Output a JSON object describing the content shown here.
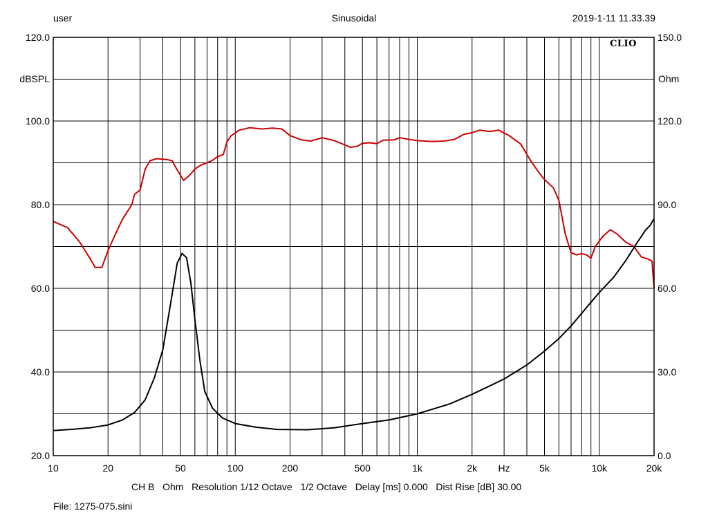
{
  "header": {
    "user": "user",
    "mode": "Sinusoidal",
    "datetime": "2019-1-11 11.33.39",
    "logo": "CLIO"
  },
  "footer": {
    "settings": "CH B   Ohm   Resolution 1/12 Octave   1/2 Octave   Delay [ms] 0.000   Dist Rise [dB] 30.00",
    "file": "File: 1275-075.sini"
  },
  "chart_data": {
    "type": "line",
    "x_scale": "log",
    "xlim": [
      10,
      20000
    ],
    "x_tick_values": [
      10,
      20,
      50,
      100,
      200,
      500,
      1000,
      2000,
      5000,
      10000,
      20000
    ],
    "x_tick_labels": [
      "10",
      "20",
      "50",
      "100",
      "200",
      "500",
      "1k",
      "2k",
      "5k",
      "10k",
      "20k"
    ],
    "x_unit_label": "Hz",
    "y_left": {
      "label": "dBSPL",
      "lim": [
        20,
        120
      ],
      "tick_values": [
        20,
        40,
        60,
        80,
        100,
        120
      ],
      "tick_labels": [
        "20.0",
        "40.0",
        "60.0",
        "80.0",
        "100.0",
        "120.0"
      ]
    },
    "y_right": {
      "label": "Ohm",
      "lim": [
        0,
        150
      ],
      "tick_values": [
        0,
        30,
        60,
        90,
        120,
        150
      ],
      "tick_labels": [
        "0.0",
        "30.0",
        "60.0",
        "90.0",
        "120.0",
        "150.0"
      ]
    },
    "grid": true,
    "series": [
      {
        "axis": "left",
        "color": "#cc0000",
        "points": [
          [
            10,
            76
          ],
          [
            12,
            74.5
          ],
          [
            14,
            71
          ],
          [
            16,
            67
          ],
          [
            17,
            65
          ],
          [
            18.5,
            65
          ],
          [
            20,
            69
          ],
          [
            22,
            73
          ],
          [
            24,
            76.5
          ],
          [
            27,
            80
          ],
          [
            28,
            82.5
          ],
          [
            30,
            83.5
          ],
          [
            32,
            88.5
          ],
          [
            34,
            90.5
          ],
          [
            37,
            91
          ],
          [
            42,
            90.8
          ],
          [
            45,
            90.5
          ],
          [
            47,
            89
          ],
          [
            52,
            85.8
          ],
          [
            56,
            87
          ],
          [
            60,
            88.5
          ],
          [
            65,
            89.5
          ],
          [
            70,
            90
          ],
          [
            75,
            90.6
          ],
          [
            80,
            91.5
          ],
          [
            86,
            92
          ],
          [
            90,
            95
          ],
          [
            95,
            96.5
          ],
          [
            105,
            97.8
          ],
          [
            120,
            98.4
          ],
          [
            140,
            98.1
          ],
          [
            160,
            98.3
          ],
          [
            180,
            98.1
          ],
          [
            200,
            96.5
          ],
          [
            230,
            95.5
          ],
          [
            260,
            95.2
          ],
          [
            300,
            96
          ],
          [
            350,
            95.3
          ],
          [
            400,
            94.3
          ],
          [
            430,
            93.7
          ],
          [
            470,
            94
          ],
          [
            500,
            94.7
          ],
          [
            550,
            94.8
          ],
          [
            600,
            94.6
          ],
          [
            650,
            95.4
          ],
          [
            750,
            95.5
          ],
          [
            800,
            96
          ],
          [
            900,
            95.6
          ],
          [
            1000,
            95.3
          ],
          [
            1200,
            95.1
          ],
          [
            1400,
            95.2
          ],
          [
            1600,
            95.6
          ],
          [
            1800,
            96.8
          ],
          [
            2000,
            97.2
          ],
          [
            2200,
            97.8
          ],
          [
            2500,
            97.5
          ],
          [
            2800,
            97.8
          ],
          [
            3200,
            96.5
          ],
          [
            3700,
            94.5
          ],
          [
            4200,
            90.5
          ],
          [
            4600,
            88
          ],
          [
            5000,
            86
          ],
          [
            5600,
            84
          ],
          [
            6000,
            81
          ],
          [
            6500,
            73
          ],
          [
            7000,
            68.5
          ],
          [
            7500,
            68
          ],
          [
            8000,
            68.3
          ],
          [
            8500,
            68
          ],
          [
            9000,
            67.2
          ],
          [
            9500,
            70
          ],
          [
            10500,
            72.5
          ],
          [
            11500,
            74
          ],
          [
            12500,
            73
          ],
          [
            14000,
            71
          ],
          [
            15500,
            70
          ],
          [
            17000,
            67.5
          ],
          [
            18500,
            67
          ],
          [
            19500,
            66.5
          ],
          [
            20000,
            60
          ]
        ]
      },
      {
        "axis": "right",
        "color": "#000000",
        "points": [
          [
            10,
            9
          ],
          [
            13,
            9.5
          ],
          [
            16,
            10
          ],
          [
            20,
            11
          ],
          [
            24,
            12.8
          ],
          [
            28,
            15.5
          ],
          [
            32,
            20
          ],
          [
            36,
            28
          ],
          [
            40,
            38
          ],
          [
            44,
            54
          ],
          [
            48,
            69
          ],
          [
            51,
            72.5
          ],
          [
            54,
            71
          ],
          [
            57,
            62
          ],
          [
            60,
            49
          ],
          [
            64,
            34
          ],
          [
            68,
            23
          ],
          [
            75,
            17
          ],
          [
            85,
            13.5
          ],
          [
            100,
            11.5
          ],
          [
            130,
            10.2
          ],
          [
            170,
            9.4
          ],
          [
            250,
            9.3
          ],
          [
            350,
            10
          ],
          [
            500,
            11.5
          ],
          [
            700,
            12.8
          ],
          [
            1000,
            15
          ],
          [
            1500,
            18.5
          ],
          [
            2000,
            22
          ],
          [
            2500,
            25
          ],
          [
            3000,
            27.5
          ],
          [
            4000,
            32.5
          ],
          [
            5000,
            37.5
          ],
          [
            6000,
            42
          ],
          [
            7000,
            46.5
          ],
          [
            8000,
            51
          ],
          [
            9000,
            55
          ],
          [
            10000,
            58.5
          ],
          [
            12000,
            64
          ],
          [
            14000,
            70
          ],
          [
            16000,
            76
          ],
          [
            18000,
            81
          ],
          [
            19000,
            82.5
          ],
          [
            20000,
            85
          ]
        ]
      }
    ]
  }
}
